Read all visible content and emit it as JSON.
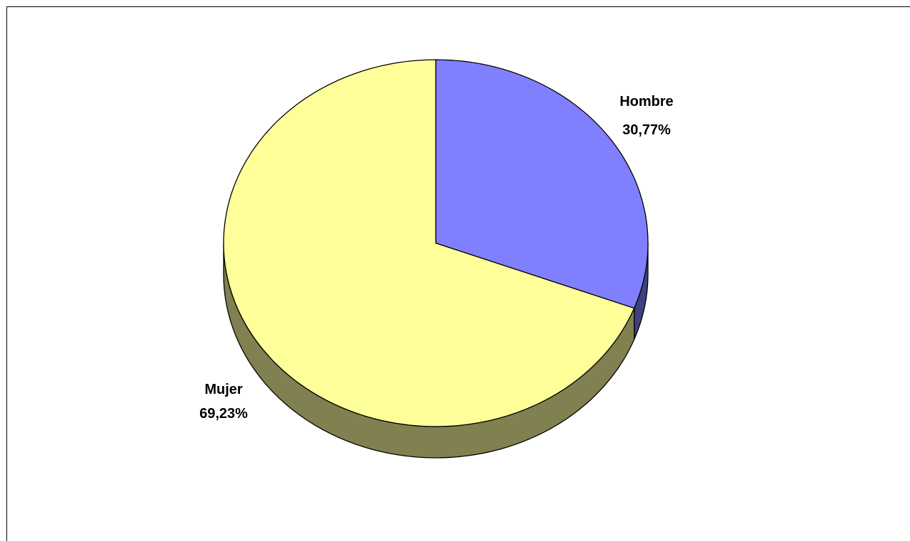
{
  "chart_data": {
    "type": "pie",
    "style": "3d",
    "title": "",
    "legend": "none",
    "slices": [
      {
        "name": "Hombre",
        "value": 30.77,
        "label_value": "30,77%",
        "color": "#8080ff",
        "side_color": "#404080"
      },
      {
        "name": "Mujer",
        "value": 69.23,
        "label_value": "69,23%",
        "color": "#ffff99",
        "side_color": "#808050"
      }
    ]
  }
}
